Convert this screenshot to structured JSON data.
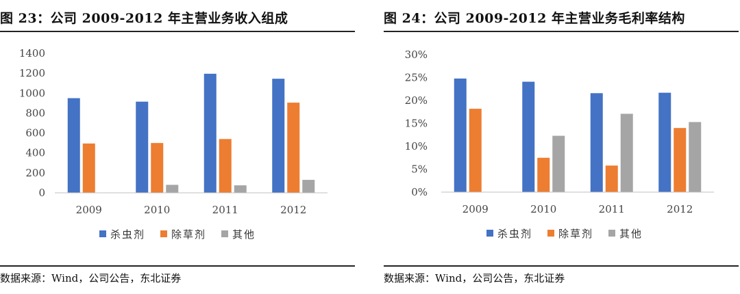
{
  "colors": {
    "insecticide": "#4472C4",
    "herbicide": "#ED7D31",
    "other": "#A5A5A5",
    "axis": "#BFBFBF"
  },
  "charts": [
    {
      "fig_title": "图 23：公司 2009-2012 年主营业务收入组成",
      "source": "数据来源：Wind，公司公告，东北证券"
    },
    {
      "fig_title": "图 24：公司 2009-2012 年主营业务毛利率结构",
      "source": "数据来源：Wind，公司公告，东北证券"
    }
  ],
  "chart_data": [
    {
      "type": "bar",
      "title": "图 23：公司 2009-2012 年主营业务收入组成",
      "categories": [
        "2009",
        "2010",
        "2011",
        "2012"
      ],
      "series": [
        {
          "name": "杀虫剂",
          "values": [
            950,
            915,
            1195,
            1145
          ]
        },
        {
          "name": "除草剂",
          "values": [
            495,
            500,
            540,
            905
          ]
        },
        {
          "name": "其他",
          "values": [
            0,
            80,
            75,
            130
          ]
        }
      ],
      "ylim": [
        0,
        1400
      ],
      "yticks": [
        0,
        200,
        400,
        600,
        800,
        1000,
        1200,
        1400
      ],
      "ytick_labels": [
        "0",
        "200",
        "400",
        "600",
        "800",
        "1000",
        "1200",
        "1400"
      ],
      "grid": false,
      "legend": "bottom"
    },
    {
      "type": "bar",
      "title": "图 24：公司 2009-2012 年主营业务毛利率结构",
      "categories": [
        "2009",
        "2010",
        "2011",
        "2012"
      ],
      "series": [
        {
          "name": "杀虫剂",
          "values": [
            0.248,
            0.241,
            0.216,
            0.217
          ]
        },
        {
          "name": "除草剂",
          "values": [
            0.182,
            0.075,
            0.058,
            0.14
          ]
        },
        {
          "name": "其他",
          "values": [
            0,
            0.123,
            0.171,
            0.153
          ]
        }
      ],
      "ylim": [
        0,
        0.3
      ],
      "yticks": [
        0,
        0.05,
        0.1,
        0.15,
        0.2,
        0.25,
        0.3
      ],
      "ytick_labels": [
        "0%",
        "5%",
        "10%",
        "15%",
        "20%",
        "25%",
        "30%"
      ],
      "grid": false,
      "legend": "bottom"
    }
  ]
}
